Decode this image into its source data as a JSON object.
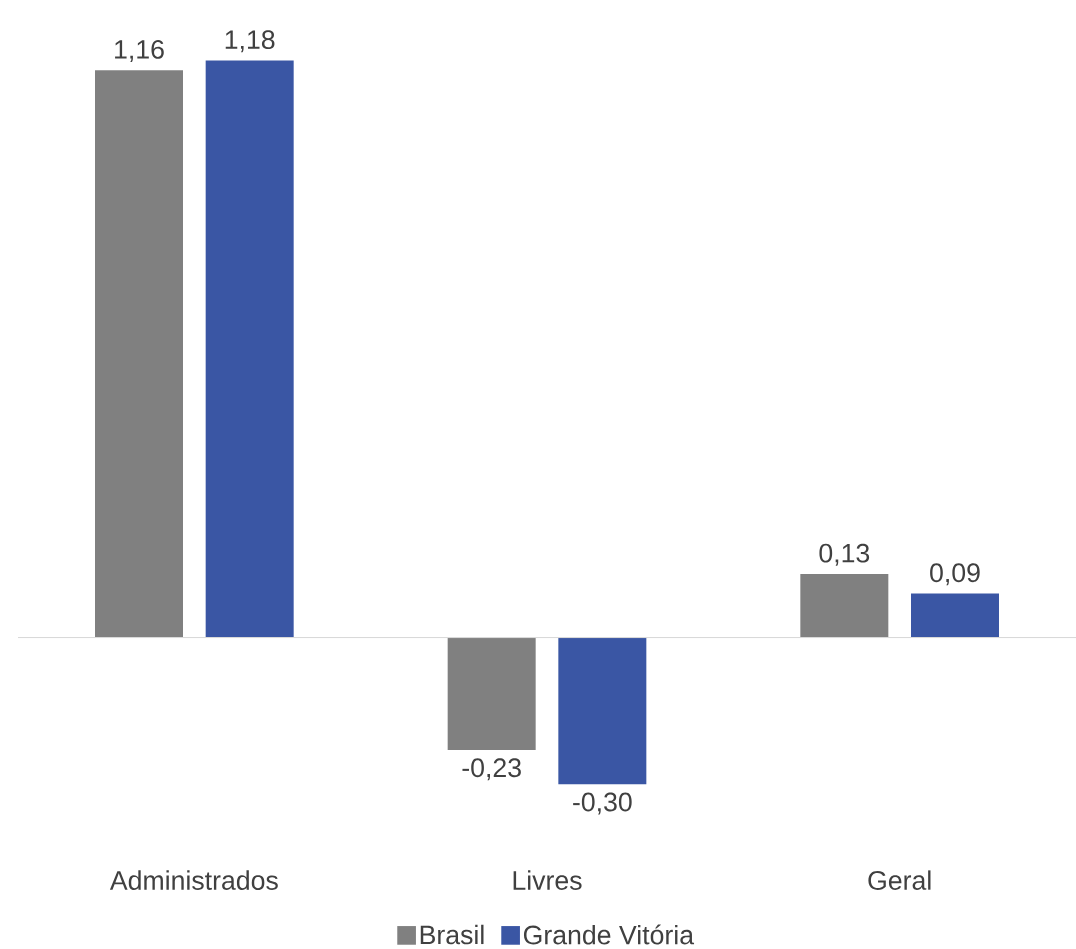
{
  "chart_data": {
    "type": "bar",
    "categories": [
      "Administrados",
      "Livres",
      "Geral"
    ],
    "series": [
      {
        "name": "Brasil",
        "color": "#808080",
        "values": [
          1.16,
          -0.23,
          0.13
        ],
        "value_labels": [
          "1,16",
          "-0,23",
          "0,13"
        ]
      },
      {
        "name": "Grande Vitória",
        "color": "#3a56a4",
        "values": [
          1.18,
          -0.3,
          0.09
        ],
        "value_labels": [
          "1,18",
          "-0,30",
          "0,09"
        ]
      }
    ],
    "legend": "bottom"
  }
}
